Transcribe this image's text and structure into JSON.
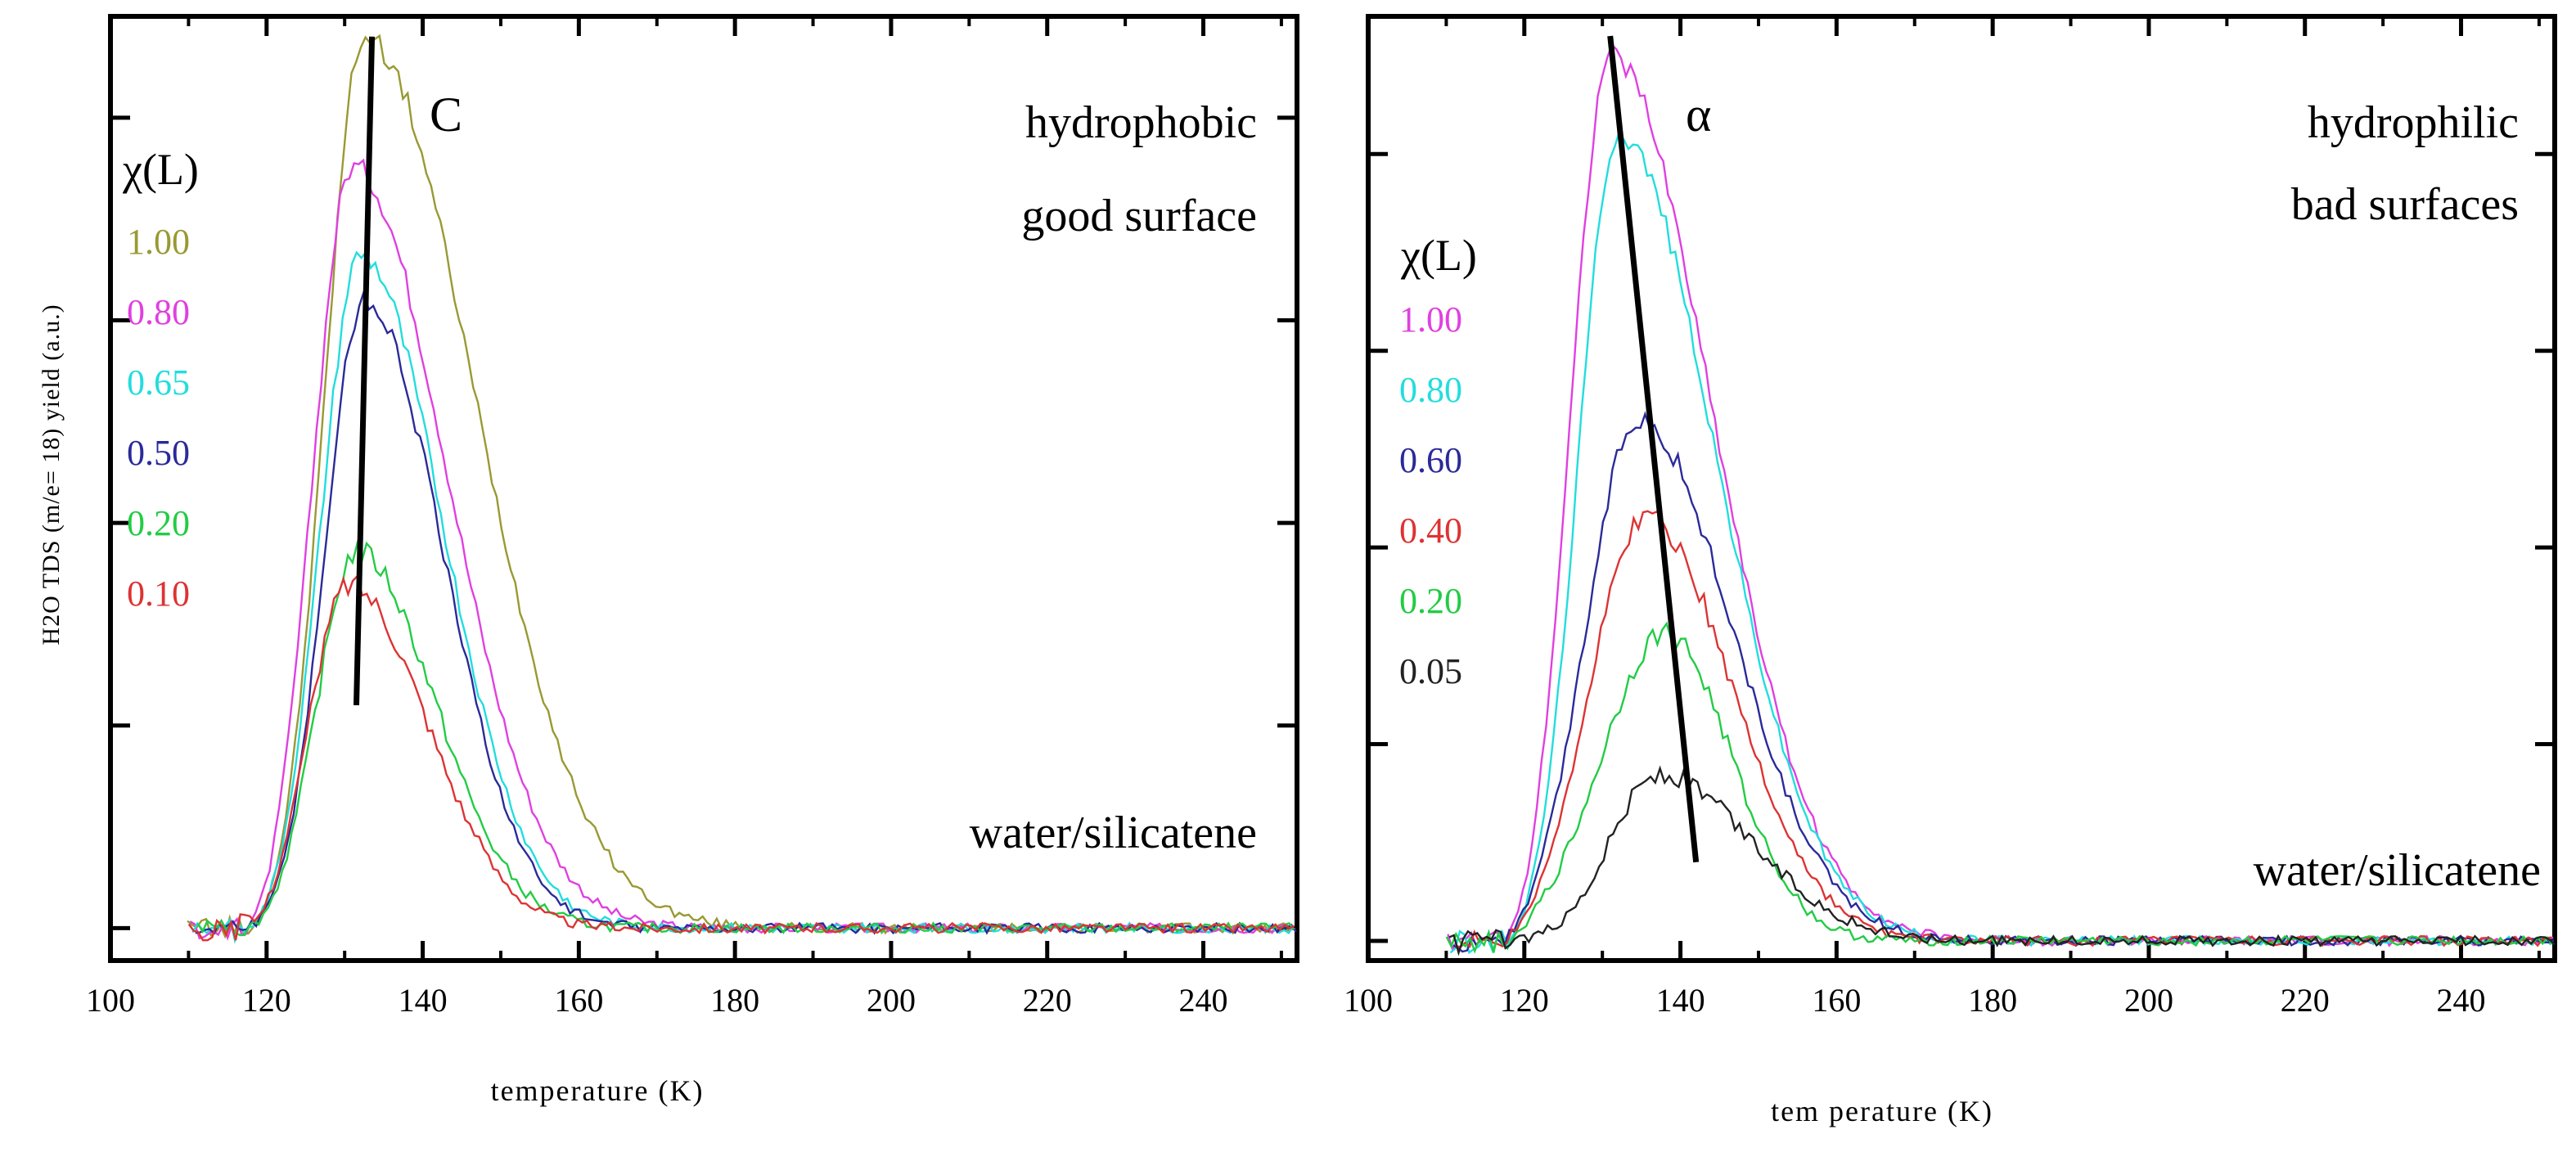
{
  "chart_data": [
    {
      "type": "line",
      "xlabel": "temperature (K)",
      "ylabel": "H2O TDS (m/e= 18) yield (a.u.)",
      "xlim": [
        100,
        252
      ],
      "ylim": [
        -0.08,
        2.25
      ],
      "xticks": [
        100,
        120,
        140,
        160,
        180,
        200,
        220,
        240
      ],
      "xtick_labels": [
        "100",
        "120",
        "140",
        "160",
        "180",
        "200",
        "220",
        "240"
      ],
      "annotation_top": [
        "hydrophobic",
        "good surface"
      ],
      "annotation_bottom": "water/silicatene",
      "marker_label": "C",
      "marker_line": [
        [
          133.5,
          2.2
        ],
        [
          131.5,
          0.55
        ]
      ],
      "legend_title": "χ(L)",
      "series": [
        {
          "name": "1.00",
          "color": "#999933",
          "peak_x": 132.5,
          "peak": 2.2,
          "width_left": 5.0,
          "width_right": 14.0
        },
        {
          "name": "0.80",
          "color": "#e040e0",
          "peak_x": 131.0,
          "peak": 1.88,
          "width_left": 5.0,
          "width_right": 12.0
        },
        {
          "name": "0.65",
          "color": "#22dddd",
          "peak_x": 132.0,
          "peak": 1.66,
          "width_left": 5.0,
          "width_right": 10.5
        },
        {
          "name": "0.50",
          "color": "#2a2a9a",
          "peak_x": 132.5,
          "peak": 1.55,
          "width_left": 5.0,
          "width_right": 10.0
        },
        {
          "name": "0.20",
          "color": "#22cc44",
          "peak_x": 131.5,
          "peak": 0.93,
          "width_left": 5.0,
          "width_right": 10.0
        },
        {
          "name": "0.10",
          "color": "#dd3333",
          "peak_x": 130.5,
          "peak": 0.85,
          "width_left": 5.0,
          "width_right": 10.0
        }
      ]
    },
    {
      "type": "line",
      "xlabel": "tem perature (K)",
      "ylabel": "",
      "xlim": [
        100,
        252
      ],
      "ylim": [
        -0.05,
        2.35
      ],
      "xticks": [
        100,
        120,
        140,
        160,
        180,
        200,
        220,
        240
      ],
      "xtick_labels": [
        "100",
        "120",
        "140",
        "160",
        "180",
        "200",
        "220",
        "240"
      ],
      "annotation_top": [
        "hydrophilic",
        "bad surfaces"
      ],
      "annotation_bottom": "water/silicatene",
      "marker_label": "α",
      "marker_line": [
        [
          131.0,
          2.3
        ],
        [
          142.0,
          0.2
        ]
      ],
      "legend_title": "χ(L)",
      "series": [
        {
          "name": "1.00",
          "color": "#e040e0",
          "peak_x": 131.0,
          "peak": 2.25,
          "width_left": 5.0,
          "width_right": 13.0
        },
        {
          "name": "0.80",
          "color": "#22dddd",
          "peak_x": 132.0,
          "peak": 2.05,
          "width_left": 5.0,
          "width_right": 12.5
        },
        {
          "name": "0.60",
          "color": "#2a2a9a",
          "peak_x": 134.5,
          "peak": 1.33,
          "width_left": 6.5,
          "width_right": 12.0
        },
        {
          "name": "0.40",
          "color": "#dd3333",
          "peak_x": 135.5,
          "peak": 1.08,
          "width_left": 7.0,
          "width_right": 11.0
        },
        {
          "name": "0.20",
          "color": "#22cc44",
          "peak_x": 138.0,
          "peak": 0.78,
          "width_left": 8.0,
          "width_right": 8.5
        },
        {
          "name": "0.05",
          "color": "#222222",
          "peak_x": 137.0,
          "peak": 0.42,
          "width_left": 6.0,
          "width_right": 12.0
        }
      ]
    }
  ]
}
